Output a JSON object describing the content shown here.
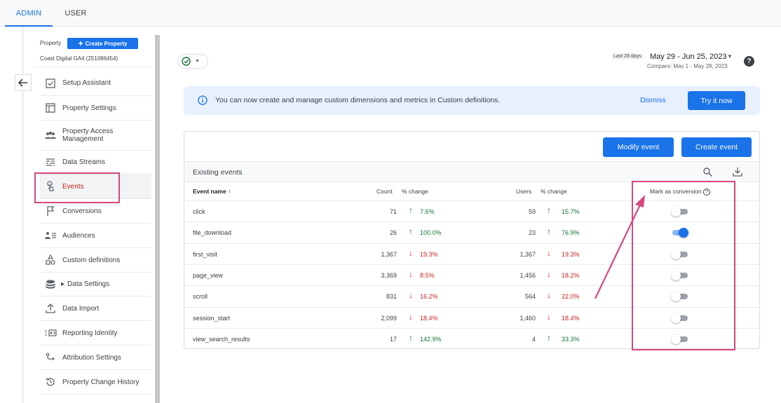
{
  "tabs": {
    "admin": "ADMIN",
    "user": "USER"
  },
  "property": {
    "label": "Property",
    "create_button": "Create Property",
    "name": "Coast Digital GA4 (251086454)"
  },
  "sidebar": {
    "items": [
      {
        "label": "Setup Assistant",
        "icon": "checkbox-icon"
      },
      {
        "label": "Property Settings",
        "icon": "browser-window-icon"
      },
      {
        "label": "Property Access Management",
        "icon": "people-icon"
      },
      {
        "label": "Data Streams",
        "icon": "streams-icon"
      },
      {
        "label": "Events",
        "icon": "touch-icon",
        "active": true
      },
      {
        "label": "Conversions",
        "icon": "flag-icon"
      },
      {
        "label": "Audiences",
        "icon": "audience-icon"
      },
      {
        "label": "Custom definitions",
        "icon": "shapes-icon"
      },
      {
        "label": "Data Settings",
        "icon": "database-icon"
      },
      {
        "label": "Data Import",
        "icon": "upload-icon"
      },
      {
        "label": "Reporting Identity",
        "icon": "identity-icon"
      },
      {
        "label": "Attribution Settings",
        "icon": "attribution-icon"
      },
      {
        "label": "Property Change History",
        "icon": "history-icon"
      }
    ]
  },
  "header": {
    "date_tag": "Last 28 days",
    "date_range": "May 29 - Jun 25, 2023",
    "compare": "Compare: May 1 - May 28, 2023"
  },
  "banner": {
    "text": "You can now create and manage custom dimensions and metrics in Custom definitions.",
    "dismiss": "Dismiss",
    "try": "Try it now"
  },
  "actions": {
    "modify": "Modify event",
    "create": "Create event"
  },
  "table": {
    "title": "Existing events",
    "columns": {
      "name": "Event name",
      "count": "Count",
      "count_change": "% change",
      "users": "Users",
      "users_change": "% change",
      "conversion": "Mark as conversion"
    },
    "rows": [
      {
        "name": "click",
        "count": "71",
        "count_change": "7.6%",
        "count_dir": "up",
        "users": "59",
        "users_change": "15.7%",
        "users_dir": "up",
        "conversion": false
      },
      {
        "name": "file_download",
        "count": "26",
        "count_change": "100.0%",
        "count_dir": "up",
        "users": "23",
        "users_change": "76.9%",
        "users_dir": "up",
        "conversion": true
      },
      {
        "name": "first_visit",
        "count": "1,367",
        "count_change": "19.3%",
        "count_dir": "down",
        "users": "1,367",
        "users_change": "19.3%",
        "users_dir": "down",
        "conversion": false
      },
      {
        "name": "page_view",
        "count": "3,369",
        "count_change": "8.5%",
        "count_dir": "down",
        "users": "1,456",
        "users_change": "18.2%",
        "users_dir": "down",
        "conversion": false
      },
      {
        "name": "scroll",
        "count": "831",
        "count_change": "16.2%",
        "count_dir": "down",
        "users": "564",
        "users_change": "22.0%",
        "users_dir": "down",
        "conversion": false
      },
      {
        "name": "session_start",
        "count": "2,099",
        "count_change": "18.4%",
        "count_dir": "down",
        "users": "1,460",
        "users_change": "18.4%",
        "users_dir": "down",
        "conversion": false
      },
      {
        "name": "view_search_results",
        "count": "17",
        "count_change": "142.9%",
        "count_dir": "up",
        "users": "4",
        "users_change": "33.3%",
        "users_dir": "up",
        "conversion": false
      }
    ]
  },
  "colors": {
    "accent": "#1a73e8",
    "highlight": "#d4477f",
    "up": "#137333",
    "down": "#c5221f"
  }
}
